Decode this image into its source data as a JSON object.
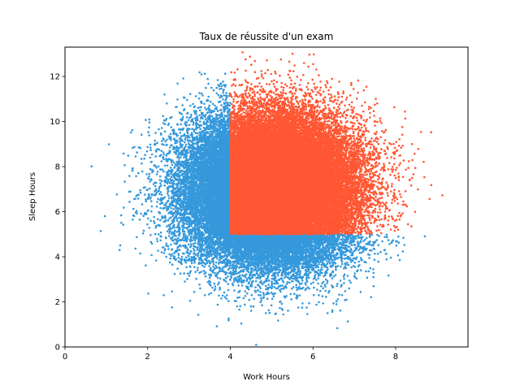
{
  "chart_data": {
    "type": "scatter",
    "title": "Taux de réussite d'un exam",
    "xlabel": "Work Hours",
    "ylabel": "Sleep Hours",
    "xlim": [
      0,
      9.75
    ],
    "ylim": [
      0,
      13.3
    ],
    "xticks": [
      0,
      2,
      4,
      6,
      8
    ],
    "yticks": [
      0,
      2,
      4,
      6,
      8,
      10,
      12
    ],
    "grid": false,
    "generation": {
      "sample_size": 52000,
      "work_hours_mean": 5.0,
      "work_hours_sd": 1.0,
      "sleep_hours_mean": 7.0,
      "sleep_hours_sd": 1.6,
      "pass_rule": "work_hours >= 4 and sleep_hours >= 5"
    },
    "series": [
      {
        "color": "#3498db",
        "marker_size": 1.3
      },
      {
        "color": "#ff5733",
        "marker_size": 1.3
      }
    ]
  }
}
